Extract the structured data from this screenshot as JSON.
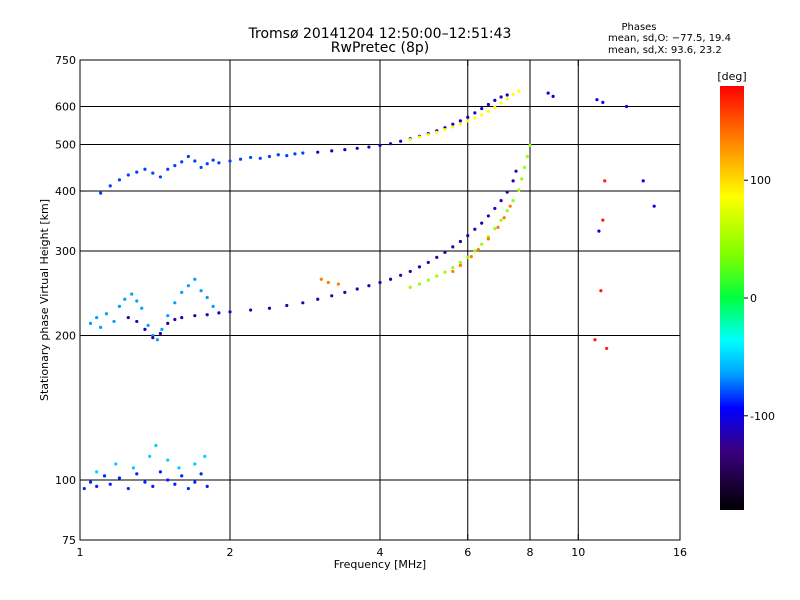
{
  "title": {
    "line1": "Tromsø 20141204 12:50:00–12:51:43",
    "line2": "RwPretec (8p)"
  },
  "stats": {
    "heading": "Phases",
    "line1": "mean, sd,O: −77.5, 19.4",
    "line2": "mean, sd,X:  93.6, 23.2"
  },
  "chart_data": {
    "type": "scatter",
    "xlabel": "Frequency [MHz]",
    "ylabel": "Stationary phase Virtual Height [km]",
    "xscale": "log",
    "yscale": "log",
    "xlim": [
      1,
      16
    ],
    "ylim": [
      75,
      750
    ],
    "grid": true,
    "x_ticks": [
      1,
      2,
      4,
      6,
      8,
      10,
      16
    ],
    "y_ticks": [
      75,
      100,
      200,
      300,
      400,
      500,
      600,
      750
    ],
    "x_gridlines": [
      2,
      4,
      6,
      8,
      10
    ],
    "y_gridlines": [
      100,
      200,
      300,
      400,
      500,
      600
    ],
    "colorbar": {
      "label": "[deg]",
      "range": [
        -180,
        180
      ],
      "ticks": [
        100,
        0,
        -100
      ]
    },
    "series": [
      {
        "phase_deg": -90,
        "points": [
          [
            1.02,
            96
          ],
          [
            1.05,
            99
          ],
          [
            1.08,
            97
          ],
          [
            1.12,
            102
          ],
          [
            1.15,
            98
          ],
          [
            1.2,
            101
          ],
          [
            1.25,
            96
          ],
          [
            1.3,
            103
          ],
          [
            1.35,
            99
          ],
          [
            1.4,
            97
          ],
          [
            1.45,
            104
          ],
          [
            1.5,
            100
          ],
          [
            1.55,
            98
          ],
          [
            1.6,
            102
          ],
          [
            1.65,
            96
          ],
          [
            1.7,
            99
          ],
          [
            1.75,
            103
          ],
          [
            1.8,
            97
          ]
        ]
      },
      {
        "phase_deg": -55,
        "points": [
          [
            1.08,
            104
          ],
          [
            1.18,
            108
          ],
          [
            1.28,
            106
          ],
          [
            1.38,
            112
          ],
          [
            1.42,
            118
          ],
          [
            1.5,
            110
          ],
          [
            1.58,
            106
          ],
          [
            1.7,
            108
          ],
          [
            1.78,
            112
          ]
        ]
      },
      {
        "phase_deg": -70,
        "points": [
          [
            1.05,
            212
          ],
          [
            1.08,
            218
          ],
          [
            1.1,
            208
          ],
          [
            1.13,
            222
          ],
          [
            1.17,
            214
          ],
          [
            1.2,
            230
          ],
          [
            1.23,
            238
          ],
          [
            1.27,
            244
          ],
          [
            1.3,
            236
          ],
          [
            1.33,
            228
          ],
          [
            1.37,
            210
          ],
          [
            1.4,
            200
          ],
          [
            1.43,
            196
          ],
          [
            1.46,
            206
          ],
          [
            1.5,
            220
          ],
          [
            1.55,
            234
          ],
          [
            1.6,
            246
          ],
          [
            1.65,
            254
          ],
          [
            1.7,
            262
          ],
          [
            1.75,
            248
          ],
          [
            1.8,
            240
          ],
          [
            1.85,
            230
          ]
        ]
      },
      {
        "phase_deg": -120,
        "points": [
          [
            1.25,
            218
          ],
          [
            1.3,
            214
          ],
          [
            1.35,
            206
          ],
          [
            1.4,
            198
          ],
          [
            1.45,
            202
          ],
          [
            1.5,
            212
          ],
          [
            1.55,
            216
          ],
          [
            1.6,
            218
          ],
          [
            1.7,
            220
          ],
          [
            1.8,
            221
          ],
          [
            1.9,
            223
          ],
          [
            2.0,
            224
          ],
          [
            2.2,
            226
          ],
          [
            2.4,
            228
          ],
          [
            2.6,
            231
          ],
          [
            2.8,
            234
          ],
          [
            3.0,
            238
          ],
          [
            3.2,
            242
          ],
          [
            3.4,
            246
          ],
          [
            3.6,
            250
          ],
          [
            3.8,
            254
          ],
          [
            4.0,
            258
          ],
          [
            4.2,
            262
          ],
          [
            4.4,
            267
          ],
          [
            4.6,
            272
          ],
          [
            4.8,
            278
          ],
          [
            5.0,
            284
          ],
          [
            5.2,
            291
          ],
          [
            5.4,
            298
          ],
          [
            5.6,
            306
          ],
          [
            5.8,
            314
          ],
          [
            6.0,
            323
          ],
          [
            6.2,
            333
          ],
          [
            6.4,
            343
          ],
          [
            6.6,
            355
          ],
          [
            6.8,
            368
          ],
          [
            7.0,
            382
          ],
          [
            7.2,
            398
          ],
          [
            7.4,
            420
          ],
          [
            7.5,
            440
          ]
        ]
      },
      {
        "phase_deg": -85,
        "points": [
          [
            1.1,
            396
          ],
          [
            1.15,
            410
          ],
          [
            1.2,
            422
          ],
          [
            1.25,
            432
          ],
          [
            1.3,
            438
          ],
          [
            1.35,
            444
          ],
          [
            1.4,
            436
          ],
          [
            1.45,
            428
          ],
          [
            1.5,
            444
          ],
          [
            1.55,
            452
          ],
          [
            1.6,
            460
          ],
          [
            1.65,
            472
          ],
          [
            1.7,
            462
          ],
          [
            1.75,
            448
          ],
          [
            1.8,
            456
          ],
          [
            1.85,
            464
          ],
          [
            1.9,
            458
          ],
          [
            2.0,
            462
          ],
          [
            2.1,
            466
          ],
          [
            2.2,
            470
          ],
          [
            2.3,
            468
          ],
          [
            2.4,
            472
          ],
          [
            2.5,
            476
          ],
          [
            2.6,
            474
          ],
          [
            2.7,
            478
          ],
          [
            2.8,
            480
          ]
        ]
      },
      {
        "phase_deg": -110,
        "points": [
          [
            3.0,
            482
          ],
          [
            3.2,
            485
          ],
          [
            3.4,
            488
          ],
          [
            3.6,
            491
          ],
          [
            3.8,
            494
          ],
          [
            4.0,
            498
          ],
          [
            4.2,
            502
          ],
          [
            4.4,
            508
          ],
          [
            4.6,
            514
          ],
          [
            4.8,
            520
          ],
          [
            5.0,
            527
          ],
          [
            5.2,
            534
          ],
          [
            5.4,
            542
          ],
          [
            5.6,
            551
          ],
          [
            5.8,
            560
          ],
          [
            6.0,
            570
          ],
          [
            6.2,
            582
          ],
          [
            6.4,
            594
          ],
          [
            6.6,
            606
          ],
          [
            6.8,
            618
          ],
          [
            7.0,
            628
          ],
          [
            7.2,
            634
          ]
        ]
      },
      {
        "phase_deg": 100,
        "points": [
          [
            4.6,
            512
          ],
          [
            4.8,
            518
          ],
          [
            5.0,
            524
          ],
          [
            5.2,
            530
          ],
          [
            5.4,
            537
          ],
          [
            5.6,
            544
          ],
          [
            5.8,
            552
          ],
          [
            6.0,
            560
          ],
          [
            6.2,
            568
          ],
          [
            6.4,
            576
          ],
          [
            6.6,
            586
          ],
          [
            6.8,
            598
          ],
          [
            7.0,
            610
          ],
          [
            7.2,
            622
          ],
          [
            7.4,
            636
          ],
          [
            7.6,
            646
          ]
        ]
      },
      {
        "phase_deg": 60,
        "points": [
          [
            4.6,
            252
          ],
          [
            4.8,
            256
          ],
          [
            5.0,
            261
          ],
          [
            5.2,
            266
          ],
          [
            5.4,
            271
          ],
          [
            5.6,
            277
          ],
          [
            5.8,
            284
          ],
          [
            6.0,
            291
          ],
          [
            6.2,
            300
          ],
          [
            6.4,
            310
          ],
          [
            6.6,
            321
          ],
          [
            6.8,
            334
          ],
          [
            7.0,
            348
          ],
          [
            7.2,
            364
          ],
          [
            7.4,
            382
          ],
          [
            7.6,
            402
          ],
          [
            7.7,
            424
          ],
          [
            7.8,
            448
          ],
          [
            7.9,
            472
          ],
          [
            8.0,
            498
          ]
        ]
      },
      {
        "phase_deg": 140,
        "points": [
          [
            3.05,
            262
          ],
          [
            3.15,
            258
          ],
          [
            3.3,
            256
          ],
          [
            5.6,
            272
          ],
          [
            5.8,
            280
          ],
          [
            6.1,
            292
          ],
          [
            6.3,
            302
          ],
          [
            6.6,
            318
          ],
          [
            6.9,
            336
          ],
          [
            7.1,
            352
          ],
          [
            7.3,
            372
          ]
        ]
      },
      {
        "phase_deg": 170,
        "points": [
          [
            11.1,
            248
          ],
          [
            11.2,
            348
          ],
          [
            11.3,
            420
          ],
          [
            10.8,
            196
          ],
          [
            11.4,
            188
          ]
        ]
      },
      {
        "phase_deg": -100,
        "points": [
          [
            10.9,
            620
          ],
          [
            11.2,
            612
          ],
          [
            12.5,
            600
          ],
          [
            13.5,
            420
          ],
          [
            14.2,
            372
          ],
          [
            11.0,
            330
          ],
          [
            8.7,
            640
          ],
          [
            8.9,
            630
          ]
        ]
      }
    ]
  }
}
